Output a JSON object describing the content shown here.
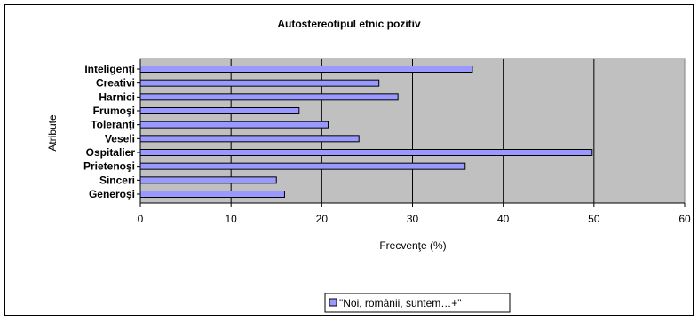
{
  "chart_data": {
    "type": "bar",
    "orientation": "horizontal",
    "title": "Autostereotipul etnic pozitiv",
    "xlabel": "Frecvenţe (%)",
    "ylabel": "Atribute",
    "categories": [
      "Inteligenţi",
      "Creativi",
      "Harnici",
      "Frumoşi",
      "Toleranţi",
      "Veseli",
      "Ospitalier",
      "Prietenoşi",
      "Sinceri",
      "Generoşi"
    ],
    "series": [
      {
        "name": "\"Noi, românii, suntem…+\"",
        "values": [
          36.6,
          26.3,
          28.4,
          17.5,
          20.7,
          24.1,
          49.8,
          35.8,
          15.0,
          15.9
        ]
      }
    ],
    "xlim": [
      0,
      60
    ],
    "xticks": [
      "0",
      "10",
      "20",
      "30",
      "40",
      "50",
      "60"
    ],
    "xtick_values": [
      0,
      10,
      20,
      30,
      40,
      50,
      60
    ],
    "grid": "vertical major gridlines",
    "legend_position": "bottom",
    "colors": {
      "plot_background": "#c0c0c0",
      "bar_fill": "#9999ff",
      "bar_stroke": "#000000",
      "gridline": "#000000"
    }
  }
}
